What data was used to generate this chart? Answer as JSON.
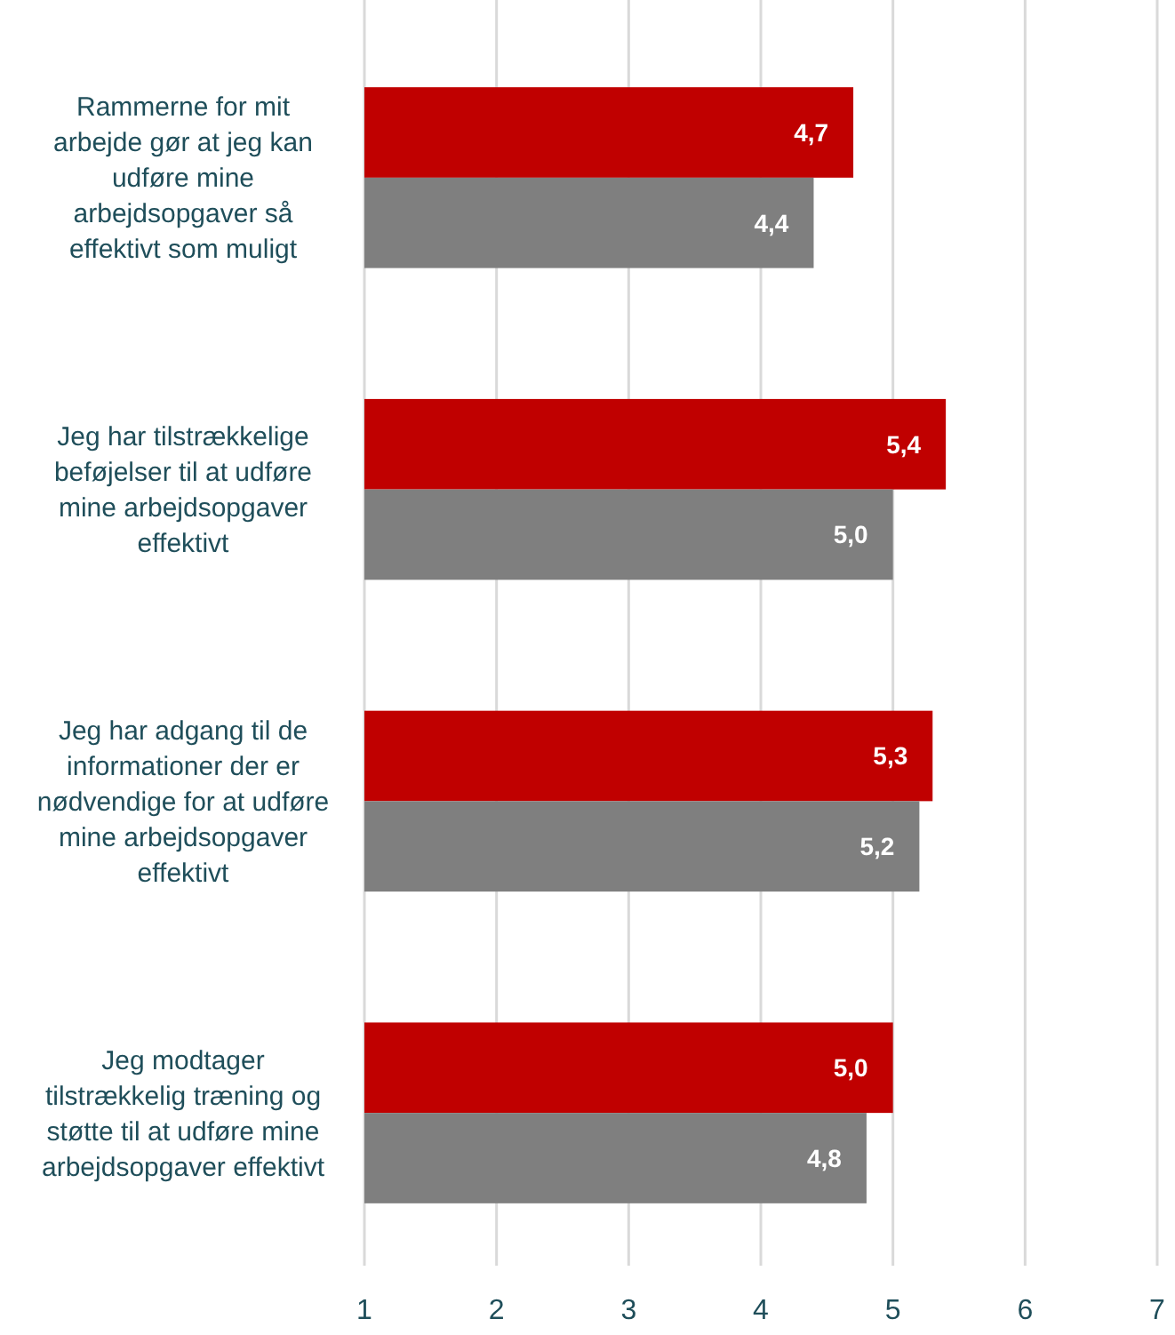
{
  "chart_data": {
    "type": "bar",
    "orientation": "horizontal",
    "categories": [
      "Rammerne for mit arbejde gør at jeg kan udføre mine arbejdsopgaver så effektivt som muligt",
      "Jeg har tilstrækkelige beføjelser til at udføre mine arbejdsopgaver effektivt",
      "Jeg har adgang til de informationer der er nødvendige for at udføre mine arbejdsopgaver effektivt",
      "Jeg modtager tilstrækkelig træning og støtte til at udføre mine arbejdsopgaver effektivt"
    ],
    "series": [
      {
        "color": "#c00000",
        "values": [
          4.7,
          5.4,
          5.3,
          5.0
        ],
        "value_labels": [
          "4,7",
          "5,4",
          "5,3",
          "5,0"
        ]
      },
      {
        "color": "#7f7f7f",
        "values": [
          4.4,
          5.0,
          5.2,
          4.8
        ],
        "value_labels": [
          "4,4",
          "5,0",
          "5,2",
          "4,8"
        ]
      }
    ],
    "xlim": [
      1,
      7
    ],
    "xticks": [
      1,
      2,
      3,
      4,
      5,
      6,
      7
    ],
    "grid": "x"
  }
}
